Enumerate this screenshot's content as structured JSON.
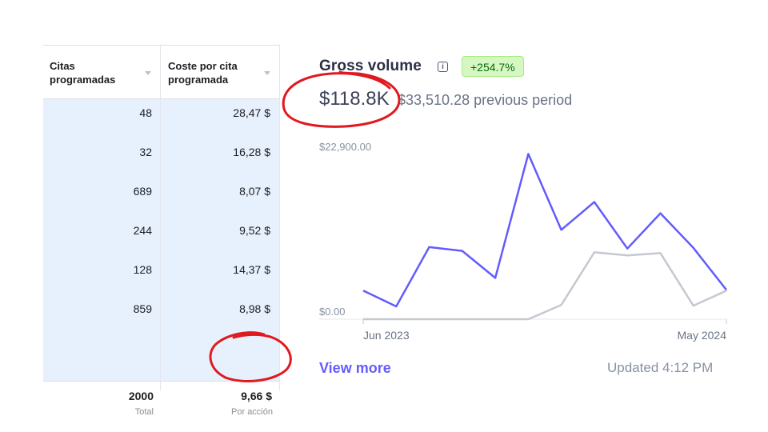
{
  "table": {
    "columns": [
      {
        "line1": "Citas",
        "line2": "programadas"
      },
      {
        "line1": "Coste por cita",
        "line2": "programada"
      }
    ],
    "rows": [
      {
        "citas": "48",
        "coste": "28,47 $"
      },
      {
        "citas": "32",
        "coste": "16,28 $"
      },
      {
        "citas": "689",
        "coste": "8,07 $"
      },
      {
        "citas": "244",
        "coste": "9,52 $"
      },
      {
        "citas": "128",
        "coste": "14,37 $"
      },
      {
        "citas": "859",
        "coste": "8,98 $"
      }
    ],
    "total": {
      "citas": "2000",
      "citas_label": "Total",
      "coste": "9,66 $",
      "coste_label": "Por acción"
    }
  },
  "gross": {
    "title": "Gross volume",
    "badge": "+254.7%",
    "value": "$118.8K",
    "previous": "$33,510.28 previous period",
    "view_more": "View more",
    "updated": "Updated 4:12 PM"
  },
  "colors": {
    "current": "#635bff",
    "previous": "#c4c8d0",
    "badge_bg": "#d7f7c2",
    "annotation": "#e0191f"
  },
  "chart_data": {
    "type": "line",
    "ylim": [
      0,
      22900
    ],
    "yticks": [
      "$22,900.00",
      "$0.00"
    ],
    "x_start_label": "Jun 2023",
    "x_end_label": "May 2024",
    "series": [
      {
        "values": [
          3800,
          1700,
          9600,
          9100,
          5500,
          22000,
          11900,
          15600,
          9400,
          14100,
          9500,
          3900
        ]
      },
      {
        "values": [
          0,
          0,
          0,
          0,
          0,
          0,
          1900,
          8900,
          8500,
          8800,
          1800,
          3800
        ]
      }
    ]
  }
}
